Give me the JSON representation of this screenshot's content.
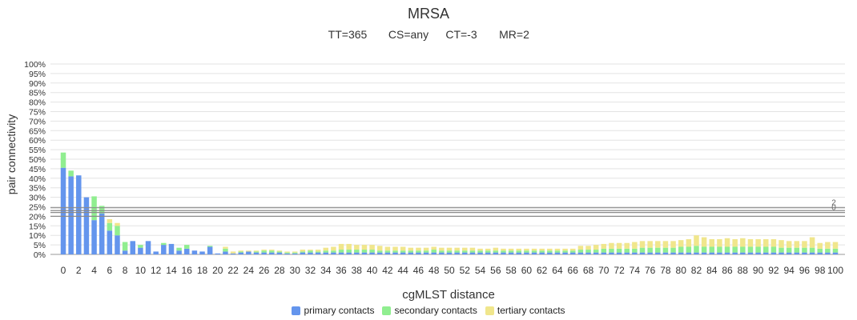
{
  "chart_data": {
    "type": "bar",
    "stacked": true,
    "title": "MRSA",
    "subtitle": [
      "TT=365",
      "CS=any",
      "CT=-3",
      "MR=2"
    ],
    "xlabel": "cgMLST distance",
    "ylabel": "pair connectivity",
    "ylim": [
      0,
      100
    ],
    "yticks": [
      0,
      5,
      10,
      15,
      20,
      25,
      30,
      35,
      40,
      45,
      50,
      55,
      60,
      65,
      70,
      75,
      80,
      85,
      90,
      95,
      100
    ],
    "ytick_suffix": "%",
    "categories": [
      0,
      1,
      2,
      3,
      4,
      5,
      6,
      7,
      8,
      9,
      10,
      11,
      12,
      13,
      14,
      15,
      16,
      17,
      18,
      19,
      20,
      21,
      22,
      23,
      24,
      25,
      26,
      27,
      28,
      29,
      30,
      31,
      32,
      33,
      34,
      35,
      36,
      37,
      38,
      39,
      40,
      41,
      42,
      43,
      44,
      45,
      46,
      47,
      48,
      49,
      50,
      51,
      52,
      53,
      54,
      55,
      56,
      57,
      58,
      59,
      60,
      61,
      62,
      63,
      64,
      65,
      66,
      67,
      68,
      69,
      70,
      71,
      72,
      73,
      74,
      75,
      76,
      77,
      78,
      79,
      80,
      81,
      82,
      83,
      84,
      85,
      86,
      87,
      88,
      89,
      90,
      91,
      92,
      93,
      94,
      95,
      96,
      97,
      98,
      99,
      100
    ],
    "xtick_step": 2,
    "series": [
      {
        "name": "primary contacts",
        "color": "#6495ed",
        "values": [
          45.5,
          41,
          41.5,
          30,
          18,
          21.5,
          12.5,
          10,
          2,
          7,
          3.5,
          7,
          1.5,
          5,
          5.5,
          2,
          3,
          2,
          1.5,
          4,
          0.5,
          1.5,
          0.5,
          1,
          1.5,
          1,
          1,
          1,
          1,
          0.5,
          0.5,
          1,
          1,
          1,
          1,
          1,
          1,
          1,
          1,
          1,
          1,
          1,
          1,
          1,
          1,
          1,
          1,
          1,
          1,
          1,
          1,
          1,
          1,
          1,
          1,
          1,
          1,
          1,
          1,
          1,
          1,
          1,
          1,
          1,
          1,
          1,
          1,
          1,
          1,
          1,
          1,
          1,
          1,
          1,
          1,
          1,
          1,
          1,
          1,
          1,
          1,
          1,
          1,
          1,
          1,
          1,
          1,
          1,
          1,
          1,
          1,
          1,
          1,
          1,
          1,
          1,
          1,
          1,
          1,
          1,
          1
        ]
      },
      {
        "name": "secondary contacts",
        "color": "#90ee90",
        "values": [
          8,
          3,
          0,
          0,
          12.5,
          4,
          4,
          5,
          4.5,
          0,
          1.5,
          0,
          0,
          1,
          0,
          1.5,
          2,
          0,
          0,
          0.5,
          0,
          1.5,
          0,
          0.5,
          0,
          0.5,
          1,
          1,
          0.5,
          0.5,
          0.5,
          0.5,
          1,
          0.5,
          1,
          1,
          1.5,
          1.5,
          1.5,
          1.5,
          1.5,
          1,
          1,
          1,
          1,
          1,
          1,
          1,
          1.5,
          1,
          1,
          1,
          1,
          1,
          1,
          1,
          1,
          1,
          1,
          1,
          1,
          1,
          1,
          1,
          1,
          1,
          1,
          1.5,
          1.5,
          1.5,
          2,
          2,
          2,
          2,
          2,
          2.5,
          2.5,
          2.5,
          2.5,
          2.5,
          3,
          3,
          3.5,
          3,
          3,
          3,
          3,
          3,
          3,
          3,
          3,
          3,
          3,
          2.5,
          2.5,
          2.5,
          2.5,
          2.5,
          2,
          2,
          2
        ]
      },
      {
        "name": "tertiary contacts",
        "color": "#f0e68c",
        "values": [
          0,
          0,
          0,
          0,
          0,
          0,
          2,
          1.5,
          0,
          0,
          0,
          0,
          0,
          0,
          0,
          0,
          0,
          0,
          0,
          0,
          0,
          1,
          1,
          0.5,
          0.5,
          0.5,
          0.5,
          0.5,
          0.5,
          0.5,
          0.5,
          1,
          0.5,
          1,
          1.5,
          2,
          3,
          3,
          2.5,
          2.5,
          2.5,
          2.5,
          2,
          2,
          2,
          1.5,
          1.5,
          1.5,
          1.5,
          1.5,
          1.5,
          1.5,
          1.5,
          1.5,
          1,
          1,
          1.5,
          1,
          1,
          1,
          1,
          1,
          1,
          1,
          1,
          1,
          1,
          2,
          2,
          2.5,
          2.5,
          3,
          3,
          3,
          3.5,
          3.5,
          3.5,
          3.5,
          3.5,
          3.5,
          3.5,
          4,
          5.5,
          5,
          4,
          4,
          4.5,
          4,
          4.5,
          4,
          4,
          4,
          4,
          4,
          3.5,
          3.5,
          3.5,
          5.5,
          3,
          3.5,
          3.5
        ]
      }
    ],
    "reference_lines": [
      {
        "value": 24.5,
        "label": "2"
      },
      {
        "value": 23,
        "label": ""
      },
      {
        "value": 22,
        "label": "0"
      },
      {
        "value": 20,
        "label": ""
      }
    ],
    "grid": true,
    "legend_position": "bottom-center"
  }
}
